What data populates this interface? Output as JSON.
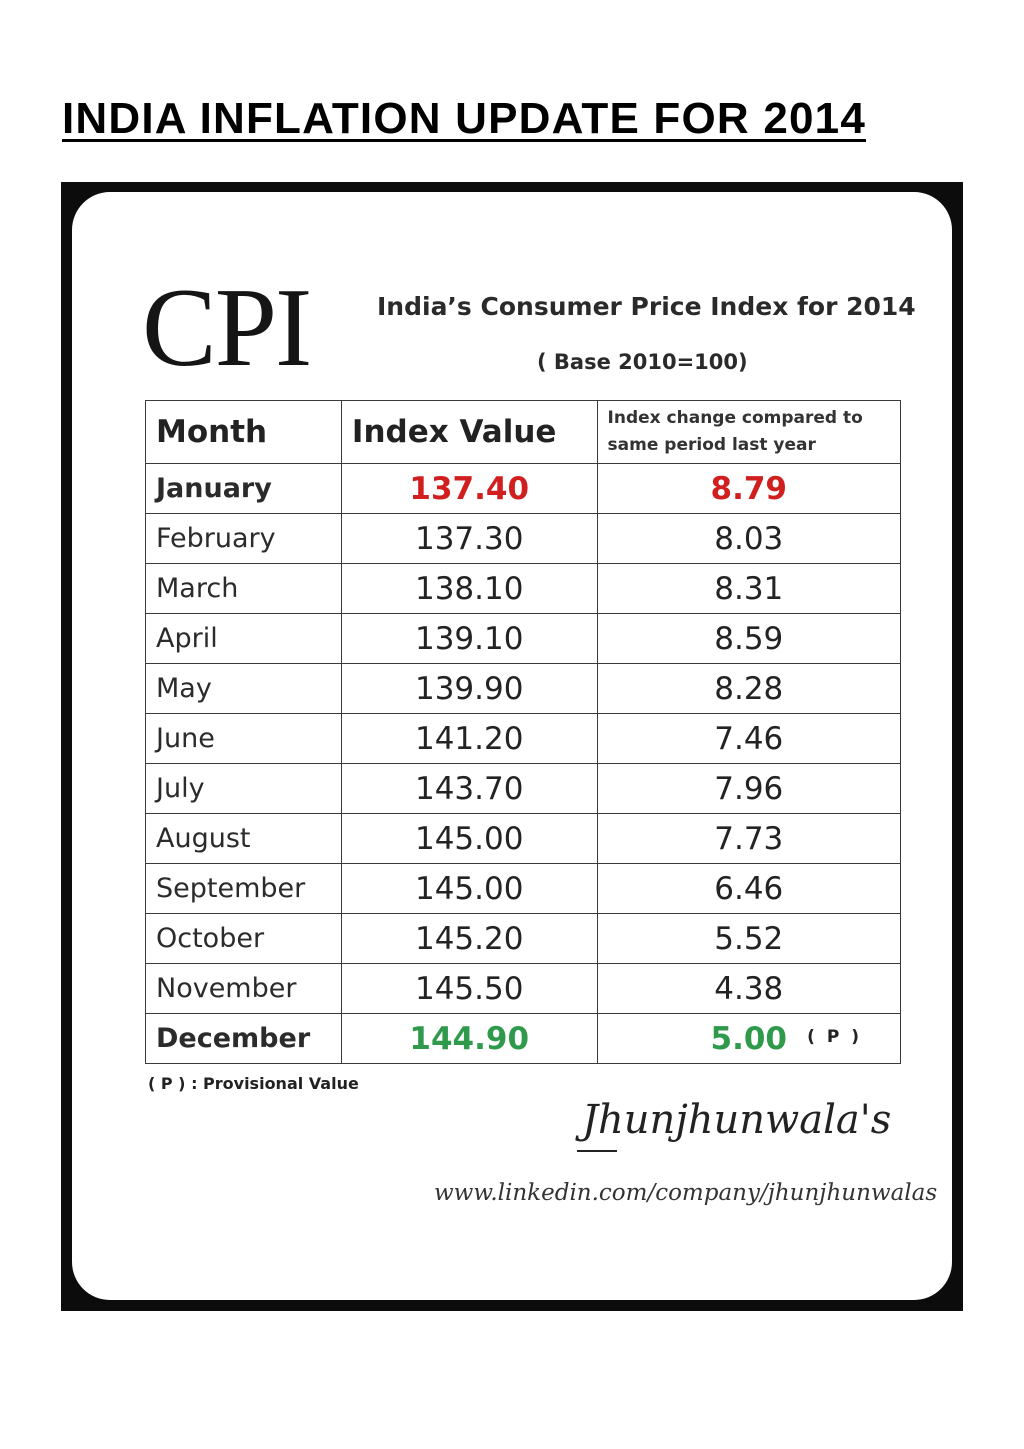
{
  "page_heading": "INDIA INFLATION UPDATE FOR 2014",
  "card": {
    "logo": "CPI",
    "title": "India’s Consumer Price Index for 2014",
    "subtitle": "( Base 2010=100)",
    "headers": {
      "month": "Month",
      "index": "Index Value",
      "change_line1": "Index change compared to",
      "change_line2": "same period last year"
    },
    "rows": [
      {
        "month": "January",
        "index": "137.40",
        "change": "8.79",
        "note": ""
      },
      {
        "month": "February",
        "index": "137.30",
        "change": "8.03",
        "note": ""
      },
      {
        "month": "March",
        "index": "138.10",
        "change": "8.31",
        "note": ""
      },
      {
        "month": "April",
        "index": "139.10",
        "change": "8.59",
        "note": ""
      },
      {
        "month": "May",
        "index": "139.90",
        "change": "8.28",
        "note": ""
      },
      {
        "month": "June",
        "index": "141.20",
        "change": "7.46",
        "note": ""
      },
      {
        "month": "July",
        "index": "143.70",
        "change": "7.96",
        "note": ""
      },
      {
        "month": "August",
        "index": "145.00",
        "change": "7.73",
        "note": ""
      },
      {
        "month": "September",
        "index": "145.00",
        "change": "6.46",
        "note": ""
      },
      {
        "month": "October",
        "index": "145.20",
        "change": "5.52",
        "note": ""
      },
      {
        "month": "November",
        "index": "145.50",
        "change": "4.38",
        "note": ""
      },
      {
        "month": "December",
        "index": "144.90",
        "change": "5.00",
        "note": "( P )"
      }
    ],
    "footnote": "( P ) : Provisional Value",
    "signature": "Jhunjhunwala's",
    "url": "www.linkedin.com/company/jhunjhunwalas"
  },
  "colors": {
    "highlight_first": "#d11f1f",
    "highlight_last": "#2f9a4b",
    "frame": "#0c0c0c"
  }
}
